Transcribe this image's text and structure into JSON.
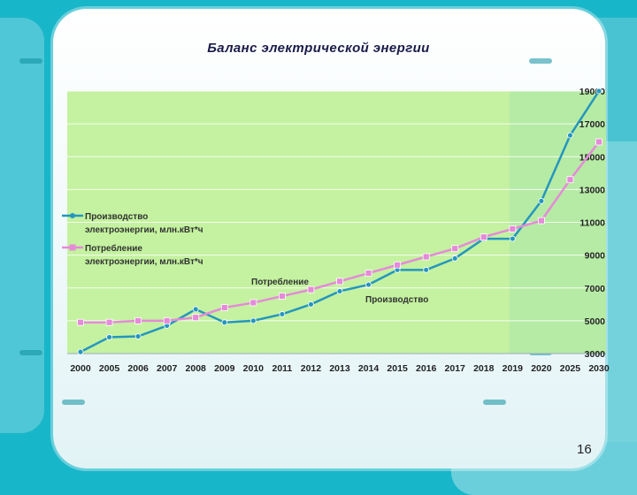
{
  "slide": {
    "title": "Баланс электрической энергии",
    "page_number": "16"
  },
  "chart_data": {
    "type": "line",
    "categories": [
      "2000",
      "2005",
      "2006",
      "2007",
      "2008",
      "2009",
      "2010",
      "2011",
      "2012",
      "2013",
      "2014",
      "2015",
      "2016",
      "2017",
      "2018",
      "2019",
      "2020",
      "2025",
      "2030"
    ],
    "series": [
      {
        "name": "Производство электроэнергии, млн.кВт*ч",
        "legend_lines": [
          "Производство",
          "электроэнергии, млн.кВт*ч"
        ],
        "color": "#2596be",
        "values": [
          3100,
          4000,
          4050,
          4700,
          5700,
          4900,
          5000,
          5400,
          6000,
          6800,
          7200,
          8100,
          8100,
          8800,
          10000,
          10000,
          12300,
          16300,
          19000
        ]
      },
      {
        "name": "Потребление электроэнергии, млн.кВт*ч",
        "legend_lines": [
          "Потребление",
          "электроэнергии, млн.кВт*ч"
        ],
        "color": "#e58ad8",
        "values": [
          4900,
          4900,
          5000,
          5000,
          5200,
          5800,
          6100,
          6500,
          6900,
          7400,
          7900,
          8400,
          8900,
          9400,
          10100,
          10600,
          11100,
          13600,
          15900
        ]
      }
    ],
    "annotations": {
      "consumption": "Потребление",
      "production": "Производство"
    },
    "yticks": [
      "3000",
      "5000",
      "7000",
      "9000",
      "11000",
      "13000",
      "15000",
      "17000",
      "19000"
    ],
    "ylim": [
      3000,
      19000
    ],
    "grid": true,
    "legend_position": "left",
    "y_axis_position": "right",
    "plot_background": "#c4f2a0"
  }
}
